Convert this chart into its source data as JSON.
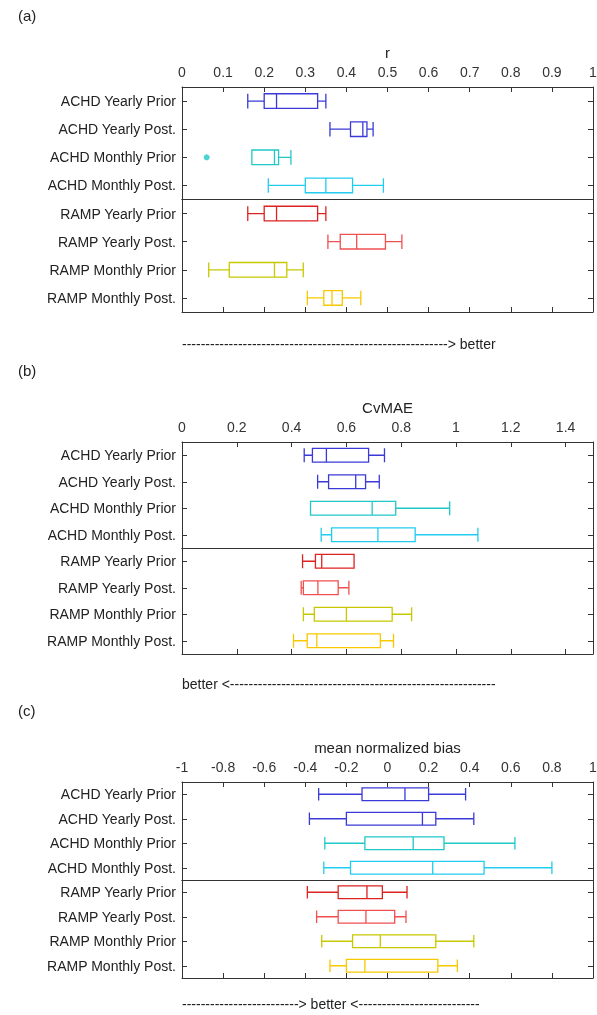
{
  "chart_data": [
    {
      "type": "box",
      "title": "(a)",
      "xlabel": "r",
      "orientation": "horizontal",
      "categories": [
        "ACHD Yearly Prior",
        "ACHD Yearly Post.",
        "ACHD Monthly Prior",
        "ACHD Monthly Post.",
        "RAMP Yearly Prior",
        "RAMP Yearly Post.",
        "RAMP Monthly Prior",
        "RAMP Monthly Post."
      ],
      "colors": [
        "#3a3ad8",
        "#3a3ad8",
        "#22c8c8",
        "#22ccee",
        "#dd2222",
        "#f05050",
        "#c8c800",
        "#f8c800"
      ],
      "boxes": [
        {
          "low": 0.16,
          "q1": 0.2,
          "median": 0.23,
          "q3": 0.33,
          "high": 0.35
        },
        {
          "low": 0.36,
          "q1": 0.41,
          "median": 0.44,
          "q3": 0.45,
          "high": 0.465
        },
        {
          "low": 0.17,
          "q1": 0.17,
          "median": 0.225,
          "q3": 0.235,
          "high": 0.265,
          "outliers": [
            0.06
          ]
        },
        {
          "low": 0.21,
          "q1": 0.3,
          "median": 0.35,
          "q3": 0.415,
          "high": 0.49
        },
        {
          "low": 0.16,
          "q1": 0.2,
          "median": 0.23,
          "q3": 0.33,
          "high": 0.35
        },
        {
          "low": 0.355,
          "q1": 0.385,
          "median": 0.425,
          "q3": 0.495,
          "high": 0.535
        },
        {
          "low": 0.065,
          "q1": 0.115,
          "median": 0.225,
          "q3": 0.255,
          "high": 0.295
        },
        {
          "low": 0.305,
          "q1": 0.345,
          "median": 0.365,
          "q3": 0.39,
          "high": 0.435
        }
      ],
      "xlim": [
        0,
        1
      ],
      "xticks": [
        0,
        0.1,
        0.2,
        0.3,
        0.4,
        0.5,
        0.6,
        0.7,
        0.8,
        0.9,
        1
      ],
      "annotations": [
        "---------------------------------------------------------> better"
      ]
    },
    {
      "type": "box",
      "title": "(b)",
      "xlabel": "CvMAE",
      "orientation": "horizontal",
      "categories": [
        "ACHD Yearly Prior",
        "ACHD Yearly Post.",
        "ACHD Monthly Prior",
        "ACHD Monthly Post.",
        "RAMP Yearly Prior",
        "RAMP Yearly Post.",
        "RAMP Monthly Prior",
        "RAMP Monthly Post."
      ],
      "colors": [
        "#3a3ad8",
        "#3a3ad8",
        "#22c8c8",
        "#22ccee",
        "#dd2222",
        "#f05050",
        "#c8c800",
        "#f8c800"
      ],
      "boxes": [
        {
          "low": 0.446,
          "q1": 0.476,
          "median": 0.527,
          "q3": 0.681,
          "high": 0.739
        },
        {
          "low": 0.495,
          "q1": 0.535,
          "median": 0.634,
          "q3": 0.67,
          "high": 0.72
        },
        {
          "low": 0.469,
          "q1": 0.469,
          "median": 0.694,
          "q3": 0.78,
          "high": 0.977
        },
        {
          "low": 0.508,
          "q1": 0.546,
          "median": 0.715,
          "q3": 0.851,
          "high": 1.08
        },
        {
          "low": 0.44,
          "q1": 0.487,
          "median": 0.51,
          "q3": 0.628,
          "high": 0.628
        },
        {
          "low": 0.435,
          "q1": 0.443,
          "median": 0.496,
          "q3": 0.57,
          "high": 0.609
        },
        {
          "low": 0.443,
          "q1": 0.483,
          "median": 0.6,
          "q3": 0.767,
          "high": 0.838
        },
        {
          "low": 0.407,
          "q1": 0.457,
          "median": 0.492,
          "q3": 0.724,
          "high": 0.772
        }
      ],
      "xlim": [
        0,
        1.5
      ],
      "xticks": [
        0,
        0.2,
        0.4,
        0.6,
        0.8,
        1,
        1.2,
        1.4
      ],
      "annotations": [
        "better <---------------------------------------------------------"
      ]
    },
    {
      "type": "box",
      "title": "(c)",
      "xlabel": "mean normalized bias",
      "orientation": "horizontal",
      "categories": [
        "ACHD Yearly Prior",
        "ACHD Yearly Post.",
        "ACHD Monthly Prior",
        "ACHD Monthly Post.",
        "RAMP Yearly Prior",
        "RAMP Yearly Post.",
        "RAMP Monthly Prior",
        "RAMP Monthly Post."
      ],
      "colors": [
        "#3a3ad8",
        "#3a3ad8",
        "#22c8c8",
        "#22ccee",
        "#dd2222",
        "#f05050",
        "#c8c800",
        "#f8c800"
      ],
      "boxes": [
        {
          "low": -0.335,
          "q1": -0.124,
          "median": 0.085,
          "q3": 0.2,
          "high": 0.38
        },
        {
          "low": -0.38,
          "q1": -0.2,
          "median": 0.17,
          "q3": 0.235,
          "high": 0.42
        },
        {
          "low": -0.305,
          "q1": -0.11,
          "median": 0.125,
          "q3": 0.275,
          "high": 0.62
        },
        {
          "low": -0.31,
          "q1": -0.18,
          "median": 0.22,
          "q3": 0.47,
          "high": 0.8
        },
        {
          "low": -0.39,
          "q1": -0.24,
          "median": -0.1,
          "q3": -0.025,
          "high": 0.095
        },
        {
          "low": -0.345,
          "q1": -0.24,
          "median": -0.105,
          "q3": 0.035,
          "high": 0.09
        },
        {
          "low": -0.32,
          "q1": -0.17,
          "median": -0.035,
          "q3": 0.235,
          "high": 0.42
        },
        {
          "low": -0.28,
          "q1": -0.2,
          "median": -0.11,
          "q3": 0.245,
          "high": 0.34
        }
      ],
      "xlim": [
        -1,
        1
      ],
      "xticks": [
        -1,
        -0.8,
        -0.6,
        -0.4,
        -0.2,
        0,
        0.2,
        0.4,
        0.6,
        0.8,
        1
      ],
      "annotations": [
        "-------------------------> better <--------------------------"
      ]
    }
  ]
}
